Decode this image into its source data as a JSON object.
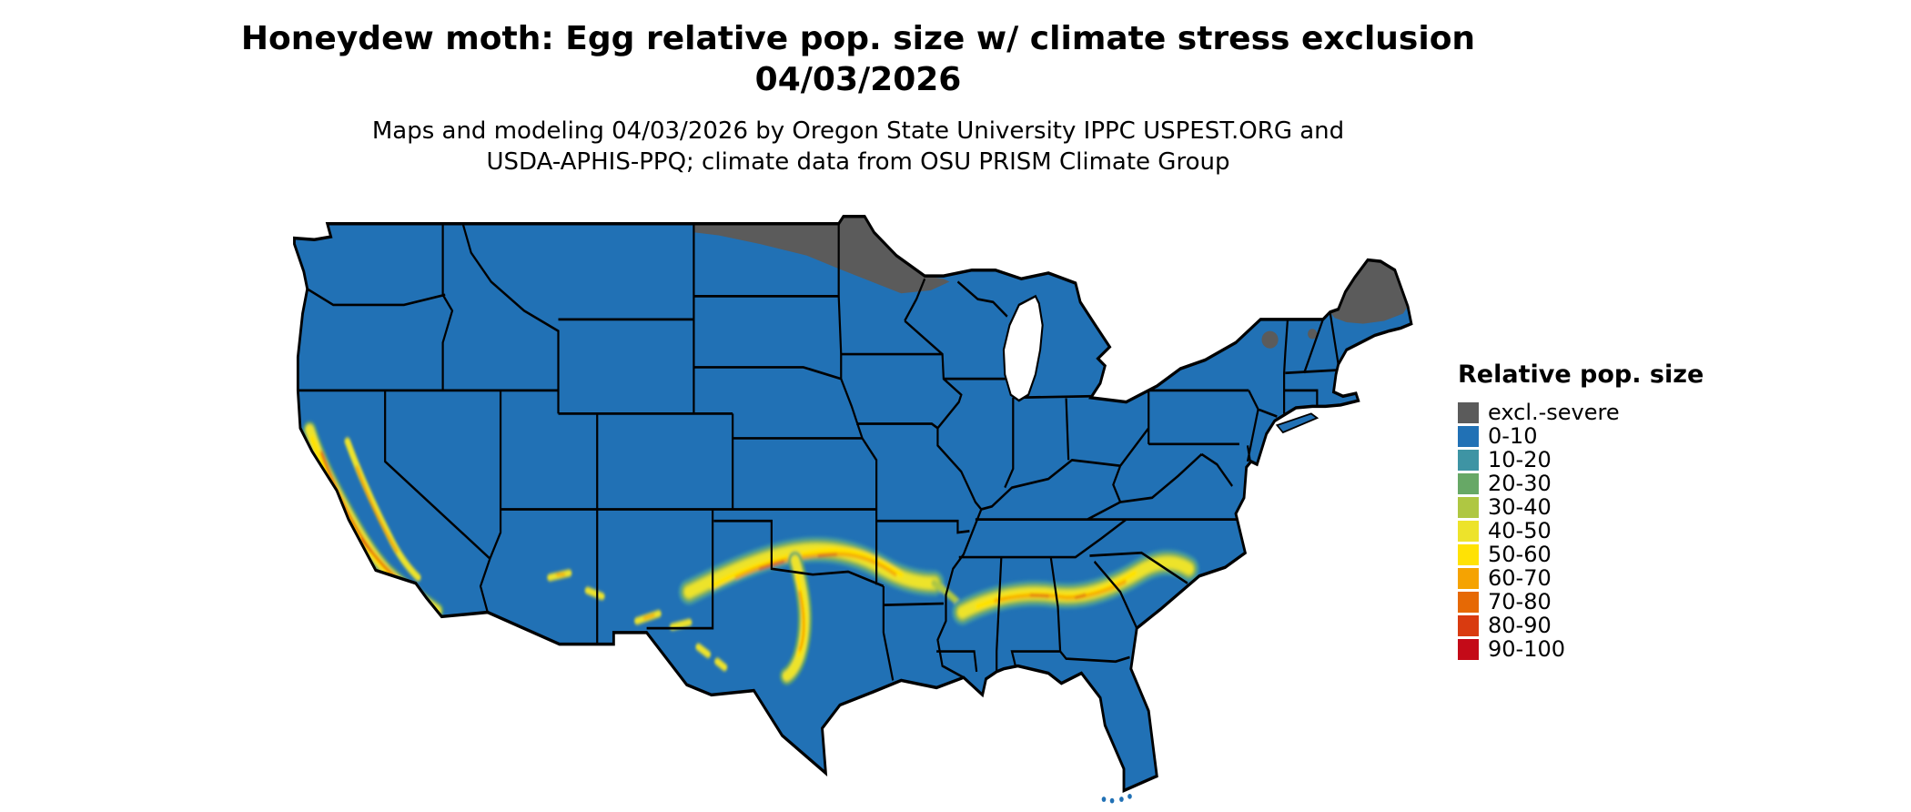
{
  "title": {
    "line1": "Honeydew moth: Egg relative pop. size w/ climate stress exclusion",
    "line2": "04/03/2026"
  },
  "subtitle": {
    "line1": "Maps and modeling 04/03/2026 by Oregon State University IPPC USPEST.ORG and",
    "line2": "USDA-APHIS-PPQ; climate data from OSU PRISM Climate Group"
  },
  "legend": {
    "title": "Relative pop. size",
    "items": [
      {
        "label": "excl.-severe",
        "color": "#5B5B5B"
      },
      {
        "label": "0-10",
        "color": "#2171B5"
      },
      {
        "label": "10-20",
        "color": "#3E94A4"
      },
      {
        "label": "20-30",
        "color": "#67A866"
      },
      {
        "label": "30-40",
        "color": "#AFC742"
      },
      {
        "label": "40-50",
        "color": "#EDE32B"
      },
      {
        "label": "50-60",
        "color": "#FFE205"
      },
      {
        "label": "60-70",
        "color": "#F5A302"
      },
      {
        "label": "70-80",
        "color": "#E66905"
      },
      {
        "label": "80-90",
        "color": "#D93B10"
      },
      {
        "label": "90-100",
        "color": "#C40A18"
      }
    ]
  },
  "map": {
    "land_color": "#2171B5",
    "water_color": "#FFFFFF",
    "border_color": "#000000",
    "exclusion_color": "#5B5B5B",
    "band_colors": {
      "teal": "#3E94A4",
      "green": "#67A866",
      "yellow_green": "#AFC742",
      "yellow": "#EDE32B",
      "bright_yellow": "#FFE205",
      "amber": "#F5A302",
      "orange": "#E66905",
      "red": "#D93B10",
      "deep_red": "#C40A18"
    }
  }
}
